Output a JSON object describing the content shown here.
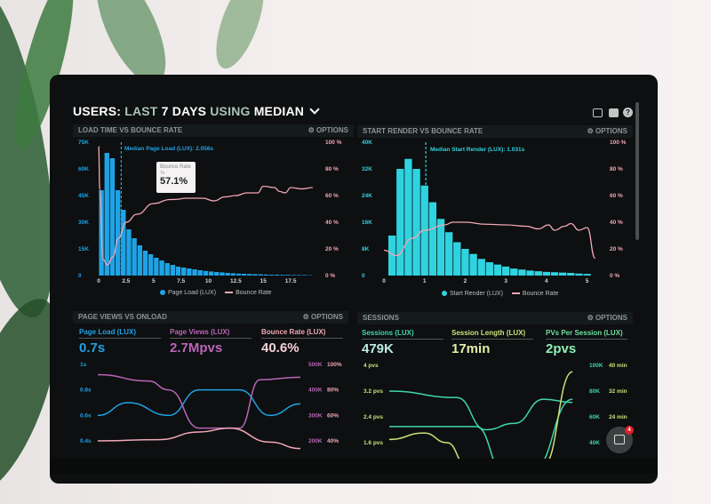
{
  "header": {
    "title_parts": [
      "USERS:",
      "LAST",
      "7 DAYS",
      "USING",
      "MEDIAN"
    ],
    "icons": [
      "monitor-icon",
      "share-icon",
      "help-icon"
    ]
  },
  "colors": {
    "blue": "#1ea3e6",
    "cyan": "#2fd3e0",
    "pink": "#f2a7b6",
    "purple": "#b965b8",
    "teal": "#3fd6b0",
    "lime": "#c9e27a"
  },
  "options_label": "OPTIONS",
  "panels": [
    {
      "title": "LOAD TIME VS BOUNCE RATE",
      "median_label": "Median Page Load (LUX): 2.056s",
      "legend": [
        "Page Load (LUX)",
        "Bounce Rate"
      ],
      "tooltip": {
        "label": "Bounce Rate",
        "sub": "7s",
        "value": "57.1%"
      }
    },
    {
      "title": "START RENDER VS BOUNCE RATE",
      "median_label": "Median Start Render (LUX): 1.031s",
      "legend": [
        "Start Render (LUX)",
        "Bounce Rate"
      ]
    },
    {
      "title": "PAGE VIEWS VS ONLOAD",
      "kpis": [
        {
          "label": "Page Load (LUX)",
          "value": "0.7s"
        },
        {
          "label": "Page Views (LUX)",
          "value": "2.7Mpvs"
        },
        {
          "label": "Bounce Rate (LUX)",
          "value": "40.6%"
        }
      ]
    },
    {
      "title": "SESSIONS",
      "kpis": [
        {
          "label": "Sessions (LUX)",
          "value": "479K"
        },
        {
          "label": "Session Length (LUX)",
          "value": "17min"
        },
        {
          "label": "PVs Per Session (LUX)",
          "value": "2pvs"
        }
      ]
    }
  ],
  "chat": {
    "badge": "4"
  },
  "chart_data": [
    {
      "type": "bar",
      "title": "LOAD TIME VS BOUNCE RATE",
      "xlim": [
        0,
        20
      ],
      "x_ticks": [
        "0",
        "2.5",
        "5",
        "7.5",
        "10",
        "12.5",
        "15",
        "17.5"
      ],
      "y_ticks": [
        "0",
        "15K",
        "30K",
        "45K",
        "60K",
        "75K"
      ],
      "ylim": [
        0,
        75000
      ],
      "y2_ticks": [
        "0 %",
        "20 %",
        "40 %",
        "60 %",
        "80 %",
        "100 %"
      ],
      "y2lim": [
        0,
        100
      ],
      "median_x": 2.056,
      "series": [
        {
          "name": "Page Load (LUX)",
          "bar_width": 0.5,
          "x_start": 0,
          "values": [
            48000,
            69000,
            66000,
            48000,
            37000,
            26000,
            21000,
            17000,
            14000,
            12000,
            10000,
            8500,
            7000,
            6000,
            5000,
            4500,
            4000,
            3500,
            3000,
            2600,
            2300,
            2000,
            1800,
            1500,
            1300,
            1100,
            1000,
            900,
            800,
            700,
            600,
            500,
            500,
            400,
            400,
            300,
            300,
            300,
            200
          ]
        },
        {
          "name": "Bounce Rate",
          "axis": "right",
          "points": [
            [
              0,
              97
            ],
            [
              0.1,
              65
            ],
            [
              0.4,
              12
            ],
            [
              0.8,
              8
            ],
            [
              1.3,
              14
            ],
            [
              1.8,
              28
            ],
            [
              2.5,
              40
            ],
            [
              3.5,
              46
            ],
            [
              5,
              54
            ],
            [
              6.5,
              57
            ],
            [
              7,
              57.1
            ],
            [
              8,
              58
            ],
            [
              9.5,
              58
            ],
            [
              10.5,
              56
            ],
            [
              11.5,
              59
            ],
            [
              12.5,
              60
            ],
            [
              13.5,
              62
            ],
            [
              14.5,
              62
            ],
            [
              15,
              67
            ],
            [
              16,
              66
            ],
            [
              16.5,
              63
            ],
            [
              17,
              62
            ],
            [
              17.5,
              66
            ],
            [
              18.5,
              65
            ],
            [
              19.5,
              66
            ]
          ]
        }
      ]
    },
    {
      "type": "bar",
      "title": "START RENDER VS BOUNCE RATE",
      "xlim": [
        0,
        5.25
      ],
      "x_ticks": [
        "0",
        "1",
        "2",
        "3",
        "4",
        "5"
      ],
      "y_ticks": [
        "0",
        "8K",
        "16K",
        "24K",
        "32K",
        "40K"
      ],
      "ylim": [
        0,
        40000
      ],
      "y2_ticks": [
        "0 %",
        "20 %",
        "40 %",
        "60 %",
        "80 %",
        "100 %"
      ],
      "y2lim": [
        0,
        100
      ],
      "median_x": 1.031,
      "series": [
        {
          "name": "Start Render (LUX)",
          "bar_width": 0.2,
          "x_start": 0.1,
          "values": [
            12000,
            32000,
            35000,
            32000,
            27000,
            22000,
            17000,
            13000,
            10000,
            8000,
            6500,
            5000,
            4000,
            3300,
            2700,
            2100,
            1800,
            1500,
            1300,
            1100,
            1000,
            900,
            800,
            600,
            500
          ]
        },
        {
          "name": "Bounce Rate",
          "axis": "right",
          "points": [
            [
              0,
              19
            ],
            [
              0.3,
              15
            ],
            [
              0.7,
              28
            ],
            [
              1,
              34
            ],
            [
              1.5,
              38
            ],
            [
              1.7,
              40
            ],
            [
              2,
              40
            ],
            [
              2.5,
              38.5
            ],
            [
              3,
              38
            ],
            [
              3.5,
              37
            ],
            [
              3.8,
              35
            ],
            [
              4.05,
              38
            ],
            [
              4.2,
              34
            ],
            [
              4.45,
              37
            ],
            [
              4.6,
              39
            ],
            [
              4.8,
              34
            ],
            [
              5,
              36
            ],
            [
              5.2,
              13
            ]
          ]
        }
      ]
    },
    {
      "type": "line",
      "title": "PAGE VIEWS VS ONLOAD",
      "xlim": [
        0,
        10
      ],
      "y_ticks": [
        "0.4s",
        "0.6s",
        "0.8s",
        "1s"
      ],
      "ylim": [
        0.4,
        1.0
      ],
      "y2_ticks": [
        "200K",
        "300K",
        "400K",
        "500K"
      ],
      "y3_ticks": [
        "40%",
        "60%",
        "80%",
        "100%"
      ],
      "series": [
        {
          "name": "Page Load (LUX)",
          "points": [
            [
              0,
              0.6
            ],
            [
              1.5,
              0.7
            ],
            [
              3.5,
              0.6
            ],
            [
              5,
              0.8
            ],
            [
              7,
              0.8
            ],
            [
              8.5,
              0.6
            ],
            [
              10,
              0.69
            ]
          ]
        },
        {
          "name": "Page Views (LUX)",
          "points": [
            [
              0,
              0.92
            ],
            [
              2.5,
              0.87
            ],
            [
              3.5,
              0.8
            ],
            [
              5,
              0.5
            ],
            [
              7,
              0.5
            ],
            [
              8,
              0.88
            ],
            [
              10,
              0.9
            ]
          ]
        },
        {
          "name": "Bounce Rate (LUX)",
          "points": [
            [
              0,
              0.4
            ],
            [
              3,
              0.41
            ],
            [
              5,
              0.47
            ],
            [
              6.5,
              0.5
            ],
            [
              8.5,
              0.39
            ],
            [
              10,
              0.34
            ]
          ]
        }
      ]
    },
    {
      "type": "line",
      "title": "SESSIONS",
      "xlim": [
        0,
        10
      ],
      "y_ticks": [
        "1.6 pvs",
        "2.4 pvs",
        "3.2 pvs",
        "4 pvs"
      ],
      "ylim": [
        1.6,
        4.0
      ],
      "y2_ticks": [
        "40K",
        "60K",
        "80K",
        "100K"
      ],
      "y3_ticks": [
        "24 min",
        "32 min",
        "40 min"
      ],
      "series": [
        {
          "name": "Sessions (LUX)",
          "points": [
            [
              0,
              3.2
            ],
            [
              3.5,
              3.0
            ],
            [
              5,
              2.0
            ],
            [
              6.5,
              2.2
            ],
            [
              8,
              2.95
            ],
            [
              9.5,
              2.85
            ]
          ]
        },
        {
          "name": "PVs Per Session (LUX)",
          "points": [
            [
              0,
              2.1
            ],
            [
              4.5,
              2.1
            ],
            [
              6,
              0.6
            ],
            [
              7.5,
              0.8
            ],
            [
              9.5,
              2.95
            ]
          ]
        },
        {
          "name": "Session Length (LUX)",
          "points": [
            [
              0,
              1.7
            ],
            [
              1.8,
              1.9
            ],
            [
              3,
              1.6
            ],
            [
              4,
              0.9
            ],
            [
              8,
              0.9
            ],
            [
              9.5,
              3.8
            ]
          ]
        }
      ]
    }
  ]
}
